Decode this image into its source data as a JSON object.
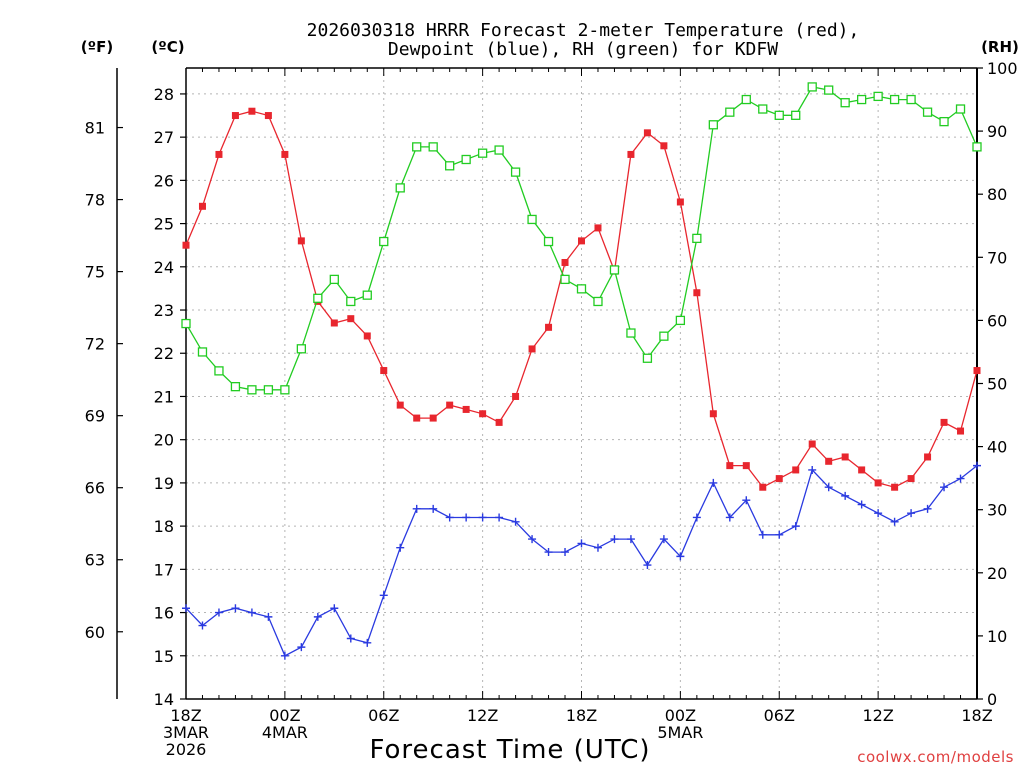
{
  "chart_data": {
    "type": "line",
    "title_line1": "2026030318 HRRR Forecast 2-meter Temperature (red),",
    "title_line2": "Dewpoint (blue), RH (green) for KDFW",
    "xlabel": "Forecast Time (UTC)",
    "watermark": "coolwx.com/models",
    "unit_f": "(ºF)",
    "unit_c": "(ºC)",
    "unit_rh": "(RH)",
    "x_range": [
      0,
      48
    ],
    "x_ticks": [
      {
        "x": 0,
        "lines": [
          "18Z",
          "3MAR",
          "2026"
        ]
      },
      {
        "x": 6,
        "lines": [
          "00Z",
          "4MAR"
        ]
      },
      {
        "x": 12,
        "lines": [
          "06Z"
        ]
      },
      {
        "x": 18,
        "lines": [
          "12Z"
        ]
      },
      {
        "x": 24,
        "lines": [
          "18Z"
        ]
      },
      {
        "x": 30,
        "lines": [
          "00Z",
          "5MAR"
        ]
      },
      {
        "x": 36,
        "lines": [
          "06Z"
        ]
      },
      {
        "x": 42,
        "lines": [
          "12Z"
        ]
      },
      {
        "x": 48,
        "lines": [
          "18Z"
        ]
      }
    ],
    "celsius_ticks": [
      14,
      15,
      16,
      17,
      18,
      19,
      20,
      21,
      22,
      23,
      24,
      25,
      26,
      27,
      28
    ],
    "celsius_range": [
      14,
      28.6
    ],
    "fahrenheit_ticks": [
      60,
      63,
      66,
      69,
      72,
      75,
      78,
      81
    ],
    "rh_ticks": [
      0,
      10,
      20,
      30,
      40,
      50,
      60,
      70,
      80,
      90,
      100
    ],
    "rh_range": [
      0,
      100
    ],
    "series": [
      {
        "name": "Temperature (red)",
        "unit": "C",
        "color": "#e8262e",
        "marker": "filled-square",
        "values": [
          24.5,
          25.4,
          26.6,
          27.5,
          27.6,
          27.5,
          26.6,
          24.6,
          23.2,
          22.7,
          22.8,
          22.4,
          21.6,
          20.8,
          20.5,
          20.5,
          20.8,
          20.7,
          20.6,
          20.4,
          21.0,
          22.1,
          22.6,
          24.1,
          24.6,
          24.9,
          23.9,
          26.6,
          27.1,
          26.8,
          25.5,
          23.4,
          20.6,
          19.4,
          19.4,
          18.9,
          19.1,
          19.3,
          19.9,
          19.5,
          19.6,
          19.3,
          19.0,
          18.9,
          19.1,
          19.6,
          20.4,
          20.2,
          21.6
        ]
      },
      {
        "name": "Dewpoint (blue)",
        "unit": "C",
        "color": "#2a3ae0",
        "marker": "plus",
        "values": [
          16.1,
          15.7,
          16.0,
          16.1,
          16.0,
          15.9,
          15.0,
          15.2,
          15.9,
          16.1,
          15.4,
          15.3,
          16.4,
          17.5,
          18.4,
          18.4,
          18.2,
          18.2,
          18.2,
          18.2,
          18.1,
          17.7,
          17.4,
          17.4,
          17.6,
          17.5,
          17.7,
          17.7,
          17.1,
          17.7,
          17.3,
          18.2,
          19.0,
          18.2,
          18.6,
          17.8,
          17.8,
          18.0,
          19.3,
          18.9,
          18.7,
          18.5,
          18.3,
          18.1,
          18.3,
          18.4,
          18.9,
          19.1,
          19.4
        ]
      },
      {
        "name": "RH (green)",
        "unit": "%",
        "color": "#22cc22",
        "marker": "open-square",
        "values": [
          59.5,
          55,
          52,
          49.5,
          49,
          49,
          49,
          55.5,
          63.5,
          66.5,
          63,
          64,
          72.5,
          81,
          87.5,
          87.5,
          84.5,
          85.5,
          86.5,
          87,
          83.5,
          76,
          72.5,
          66.5,
          65,
          63,
          68,
          58,
          54,
          57.5,
          60,
          73,
          91,
          93,
          95,
          93.5,
          92.5,
          92.5,
          97,
          96.5,
          94.5,
          95,
          95.5,
          95,
          95,
          93,
          91.5,
          93.5,
          87.5
        ]
      }
    ]
  }
}
